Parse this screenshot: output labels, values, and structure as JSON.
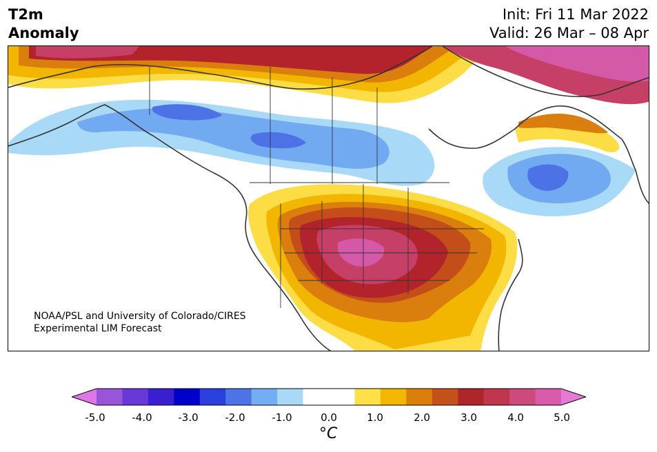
{
  "header": {
    "title_line1": "T2m",
    "title_line2": "Anomaly",
    "init": "Init: Fri 11 Mar 2022",
    "valid": "Valid: 26 Mar – 08 Apr"
  },
  "credits": {
    "line1": "NOAA/PSL and University of Colorado/CIRES",
    "line2": "Experimental LIM Forecast"
  },
  "colorbar": {
    "colors": [
      "#dd77e6",
      "#9955d9",
      "#6a38d8",
      "#3a1fd0",
      "#0000cc",
      "#2a3fdc",
      "#4d73e6",
      "#74aef2",
      "#a9d9f7",
      "#ffffff",
      "#ffffff",
      "#ffe048",
      "#f2b700",
      "#dc7f0a",
      "#c4501a",
      "#b0252a",
      "#c0364e",
      "#cc4a7e",
      "#d85ca9",
      "#e47ad6"
    ],
    "ticks": [
      "-5.0",
      "-4.0",
      "-3.0",
      "-2.0",
      "-1.0",
      "0.0",
      "1.0",
      "2.0",
      "3.0",
      "4.0",
      "5.0"
    ],
    "unit": "°C"
  },
  "map": {
    "anomaly_colors": {
      "pink": "#d45aa8",
      "magenta": "#c63f66",
      "darkred": "#b3232c",
      "orangered": "#c44e1a",
      "orange": "#da7f0d",
      "gold": "#f2b600",
      "yellow": "#fcdd45",
      "lightblue": "#a8d9f7",
      "midblue": "#72aaf2",
      "blue": "#4c72e6"
    }
  }
}
